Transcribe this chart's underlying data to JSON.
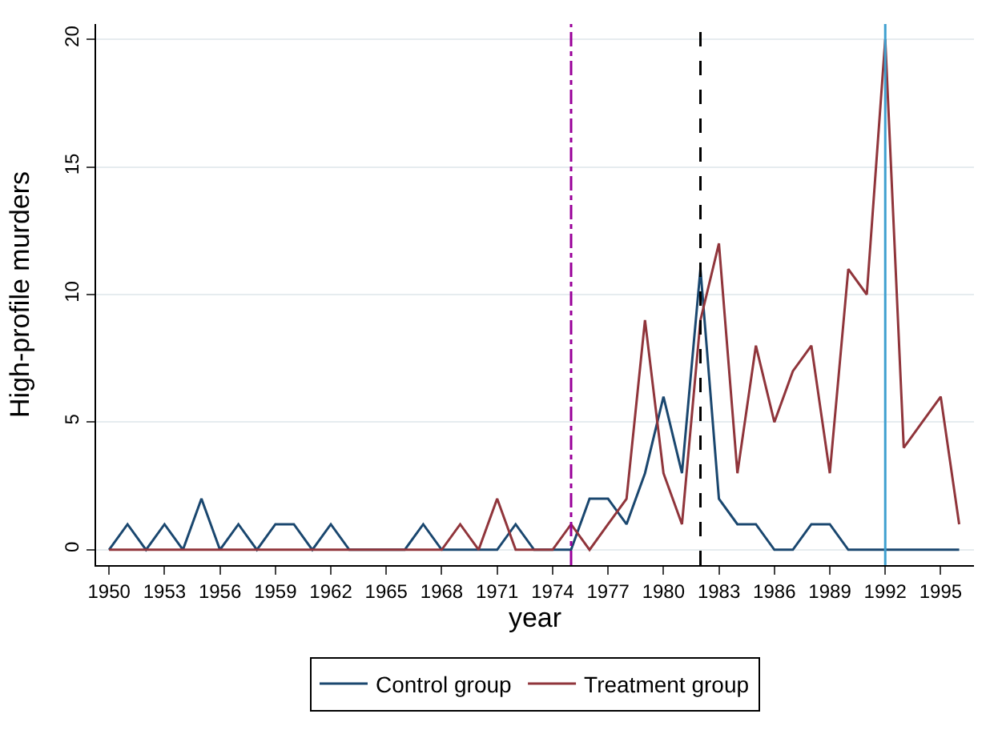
{
  "chart_data": {
    "type": "line",
    "xlabel": "year",
    "ylabel": "High-profile murders",
    "x": [
      1950,
      1951,
      1952,
      1953,
      1954,
      1955,
      1956,
      1957,
      1958,
      1959,
      1960,
      1961,
      1962,
      1963,
      1964,
      1965,
      1966,
      1967,
      1968,
      1969,
      1970,
      1971,
      1972,
      1973,
      1974,
      1975,
      1976,
      1977,
      1978,
      1979,
      1980,
      1981,
      1982,
      1983,
      1984,
      1985,
      1986,
      1987,
      1988,
      1989,
      1990,
      1991,
      1992,
      1993,
      1994,
      1995,
      1996
    ],
    "series": [
      {
        "name": "Control group",
        "color": "#1a476f",
        "values": [
          0,
          1,
          0,
          1,
          0,
          2,
          0,
          1,
          0,
          1,
          1,
          0,
          1,
          0,
          0,
          0,
          0,
          1,
          0,
          0,
          0,
          0,
          1,
          0,
          0,
          0,
          2,
          2,
          1,
          3,
          6,
          3,
          11,
          2,
          1,
          1,
          0,
          0,
          1,
          1,
          0,
          0,
          0,
          0,
          0,
          0,
          0
        ]
      },
      {
        "name": "Treatment group",
        "color": "#90353b",
        "values": [
          0,
          0,
          0,
          0,
          0,
          0,
          0,
          0,
          0,
          0,
          0,
          0,
          0,
          0,
          0,
          0,
          0,
          0,
          0,
          1,
          0,
          2,
          0,
          0,
          0,
          1,
          0,
          1,
          2,
          9,
          3,
          1,
          9,
          12,
          3,
          8,
          5,
          7,
          8,
          3,
          11,
          10,
          20,
          4,
          5,
          6,
          1
        ]
      }
    ],
    "xlim": [
      1949.3,
      1996.8
    ],
    "xticks": [
      1950,
      1953,
      1956,
      1959,
      1962,
      1965,
      1968,
      1971,
      1974,
      1977,
      1980,
      1983,
      1986,
      1989,
      1992,
      1995
    ],
    "ylim": [
      -0.6,
      20.6
    ],
    "yticks": [
      0,
      5,
      10,
      15,
      20
    ],
    "grid": "y",
    "legend": "bottom",
    "marker": "none",
    "line_style": "solid",
    "ref_lines": [
      {
        "axis": "x",
        "value": 1975,
        "color": "#990099",
        "line_style": "dashdot"
      },
      {
        "axis": "x",
        "value": 1982,
        "color": "#000000",
        "line_style": "dashed"
      },
      {
        "axis": "x",
        "value": 1992,
        "color": "#3fa0d0",
        "line_style": "solid"
      }
    ]
  }
}
